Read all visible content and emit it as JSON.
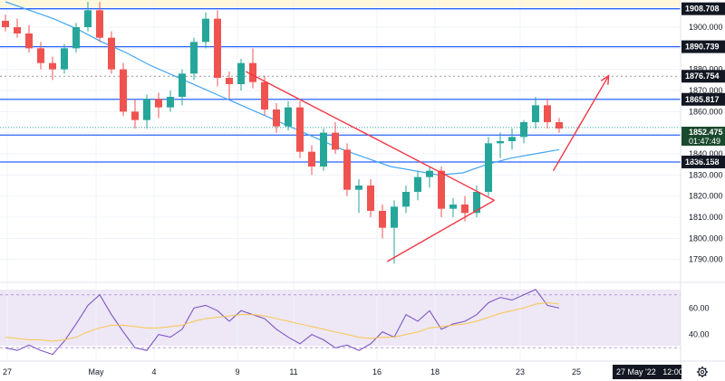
{
  "chart_data": [
    {
      "type": "candlestick",
      "ylim": [
        1780,
        1912
      ],
      "y_ticks": [
        "1900.000",
        "1890.000",
        "1880.000",
        "1870.000",
        "1860.000",
        "1850.000",
        "1840.000",
        "1830.000",
        "1820.000",
        "1810.000",
        "1800.000",
        "1790.000"
      ],
      "x_ticks": [
        "27",
        "May",
        "4",
        "9",
        "11",
        "16",
        "18",
        "23",
        "25"
      ],
      "horizontal_levels": [
        {
          "value": 1908.708,
          "label": "1908.708"
        },
        {
          "value": 1890.739,
          "label": "1890.739"
        },
        {
          "value": 1865.817,
          "label": "1865.817"
        },
        {
          "value": 1848.881,
          "label": "1848.881"
        },
        {
          "value": 1836.158,
          "label": "1836.158"
        }
      ],
      "dotted_level": {
        "value": 1876.754,
        "label": "1876.754"
      },
      "current_price": {
        "value": 1852.475,
        "label": "1852.475",
        "countdown": "01:47:49"
      },
      "partial_tick_label": "1840.000",
      "cursor_time_label": "27 May '22   12:00",
      "moving_average": [
        1912,
        1908,
        1904,
        1899,
        1893,
        1888,
        1882,
        1877,
        1872,
        1867,
        1862,
        1857,
        1852,
        1847,
        1842,
        1838,
        1834,
        1832,
        1830,
        1831,
        1835,
        1838,
        1840,
        1842
      ],
      "candles": [
        {
          "o": 1903,
          "h": 1906,
          "l": 1898,
          "c": 1900
        },
        {
          "o": 1900,
          "h": 1904,
          "l": 1895,
          "c": 1897
        },
        {
          "o": 1897,
          "h": 1901,
          "l": 1888,
          "c": 1890
        },
        {
          "o": 1890,
          "h": 1893,
          "l": 1880,
          "c": 1883
        },
        {
          "o": 1883,
          "h": 1886,
          "l": 1875,
          "c": 1880
        },
        {
          "o": 1880,
          "h": 1892,
          "l": 1878,
          "c": 1890
        },
        {
          "o": 1890,
          "h": 1902,
          "l": 1888,
          "c": 1900
        },
        {
          "o": 1900,
          "h": 1912,
          "l": 1898,
          "c": 1908
        },
        {
          "o": 1908,
          "h": 1912,
          "l": 1893,
          "c": 1895
        },
        {
          "o": 1895,
          "h": 1898,
          "l": 1878,
          "c": 1880
        },
        {
          "o": 1880,
          "h": 1883,
          "l": 1858,
          "c": 1860
        },
        {
          "o": 1860,
          "h": 1866,
          "l": 1852,
          "c": 1856
        },
        {
          "o": 1856,
          "h": 1868,
          "l": 1852,
          "c": 1866
        },
        {
          "o": 1866,
          "h": 1869,
          "l": 1857,
          "c": 1862
        },
        {
          "o": 1862,
          "h": 1870,
          "l": 1860,
          "c": 1867
        },
        {
          "o": 1867,
          "h": 1880,
          "l": 1863,
          "c": 1878
        },
        {
          "o": 1878,
          "h": 1895,
          "l": 1875,
          "c": 1893
        },
        {
          "o": 1893,
          "h": 1907,
          "l": 1890,
          "c": 1904
        },
        {
          "o": 1904,
          "h": 1908,
          "l": 1872,
          "c": 1876
        },
        {
          "o": 1876,
          "h": 1879,
          "l": 1866,
          "c": 1873
        },
        {
          "o": 1873,
          "h": 1885,
          "l": 1870,
          "c": 1883
        },
        {
          "o": 1883,
          "h": 1890,
          "l": 1871,
          "c": 1874
        },
        {
          "o": 1874,
          "h": 1877,
          "l": 1858,
          "c": 1861
        },
        {
          "o": 1861,
          "h": 1864,
          "l": 1850,
          "c": 1853
        },
        {
          "o": 1853,
          "h": 1865,
          "l": 1851,
          "c": 1862
        },
        {
          "o": 1862,
          "h": 1865,
          "l": 1838,
          "c": 1841
        },
        {
          "o": 1841,
          "h": 1844,
          "l": 1830,
          "c": 1834
        },
        {
          "o": 1834,
          "h": 1852,
          "l": 1832,
          "c": 1850
        },
        {
          "o": 1850,
          "h": 1855,
          "l": 1840,
          "c": 1842
        },
        {
          "o": 1842,
          "h": 1845,
          "l": 1820,
          "c": 1823
        },
        {
          "o": 1823,
          "h": 1828,
          "l": 1812,
          "c": 1825
        },
        {
          "o": 1825,
          "h": 1828,
          "l": 1810,
          "c": 1813
        },
        {
          "o": 1813,
          "h": 1816,
          "l": 1800,
          "c": 1805
        },
        {
          "o": 1805,
          "h": 1818,
          "l": 1788,
          "c": 1815
        },
        {
          "o": 1815,
          "h": 1825,
          "l": 1812,
          "c": 1822
        },
        {
          "o": 1822,
          "h": 1832,
          "l": 1818,
          "c": 1829
        },
        {
          "o": 1829,
          "h": 1834,
          "l": 1824,
          "c": 1832
        },
        {
          "o": 1832,
          "h": 1834,
          "l": 1810,
          "c": 1814
        },
        {
          "o": 1814,
          "h": 1819,
          "l": 1810,
          "c": 1816
        },
        {
          "o": 1816,
          "h": 1820,
          "l": 1808,
          "c": 1812
        },
        {
          "o": 1812,
          "h": 1825,
          "l": 1810,
          "c": 1822
        },
        {
          "o": 1822,
          "h": 1848,
          "l": 1820,
          "c": 1845
        },
        {
          "o": 1845,
          "h": 1850,
          "l": 1838,
          "c": 1846
        },
        {
          "o": 1846,
          "h": 1852,
          "l": 1842,
          "c": 1848
        },
        {
          "o": 1848,
          "h": 1856,
          "l": 1845,
          "c": 1855
        },
        {
          "o": 1855,
          "h": 1867,
          "l": 1852,
          "c": 1863
        },
        {
          "o": 1863,
          "h": 1866,
          "l": 1852,
          "c": 1855
        },
        {
          "o": 1855,
          "h": 1857,
          "l": 1850,
          "c": 1852
        }
      ]
    },
    {
      "type": "line",
      "ylim": [
        22,
        78
      ],
      "y_ticks": [
        "60.00",
        "40.00"
      ],
      "rsi_upper": 70,
      "rsi_lower": 30,
      "series": [
        {
          "color": "#7e57c2",
          "values": [
            30,
            28,
            32,
            28,
            25,
            35,
            48,
            62,
            70,
            55,
            42,
            30,
            28,
            40,
            38,
            44,
            60,
            62,
            58,
            50,
            58,
            55,
            52,
            44,
            38,
            33,
            40,
            36,
            30,
            32,
            28,
            33,
            42,
            38,
            55,
            50,
            58,
            44,
            48,
            50,
            55,
            64,
            68,
            66,
            70,
            74,
            62,
            60
          ]
        },
        {
          "color": "#f9c74f",
          "values": [
            38,
            37,
            36,
            36,
            35,
            36,
            38,
            42,
            45,
            47,
            47,
            46,
            45,
            45,
            46,
            47,
            50,
            52,
            53,
            54,
            55,
            55,
            54,
            52,
            50,
            48,
            46,
            44,
            42,
            40,
            38,
            37,
            38,
            38,
            40,
            42,
            45,
            46,
            47,
            48,
            50,
            53,
            56,
            58,
            60,
            63,
            64,
            63
          ]
        }
      ]
    }
  ],
  "colors": {
    "up": "#26a69a",
    "down": "#ef5350",
    "level_line": "#2962ff",
    "ma": "#42a5f5",
    "trendline": "#f23645",
    "rsi": "#7e57c2",
    "rsi_ma": "#f9c74f",
    "rsi_band": "#ede7f6",
    "price_badge": "#1a4a2e",
    "axis_badge": "#131722"
  },
  "icons": {
    "settings": "gear-icon"
  }
}
